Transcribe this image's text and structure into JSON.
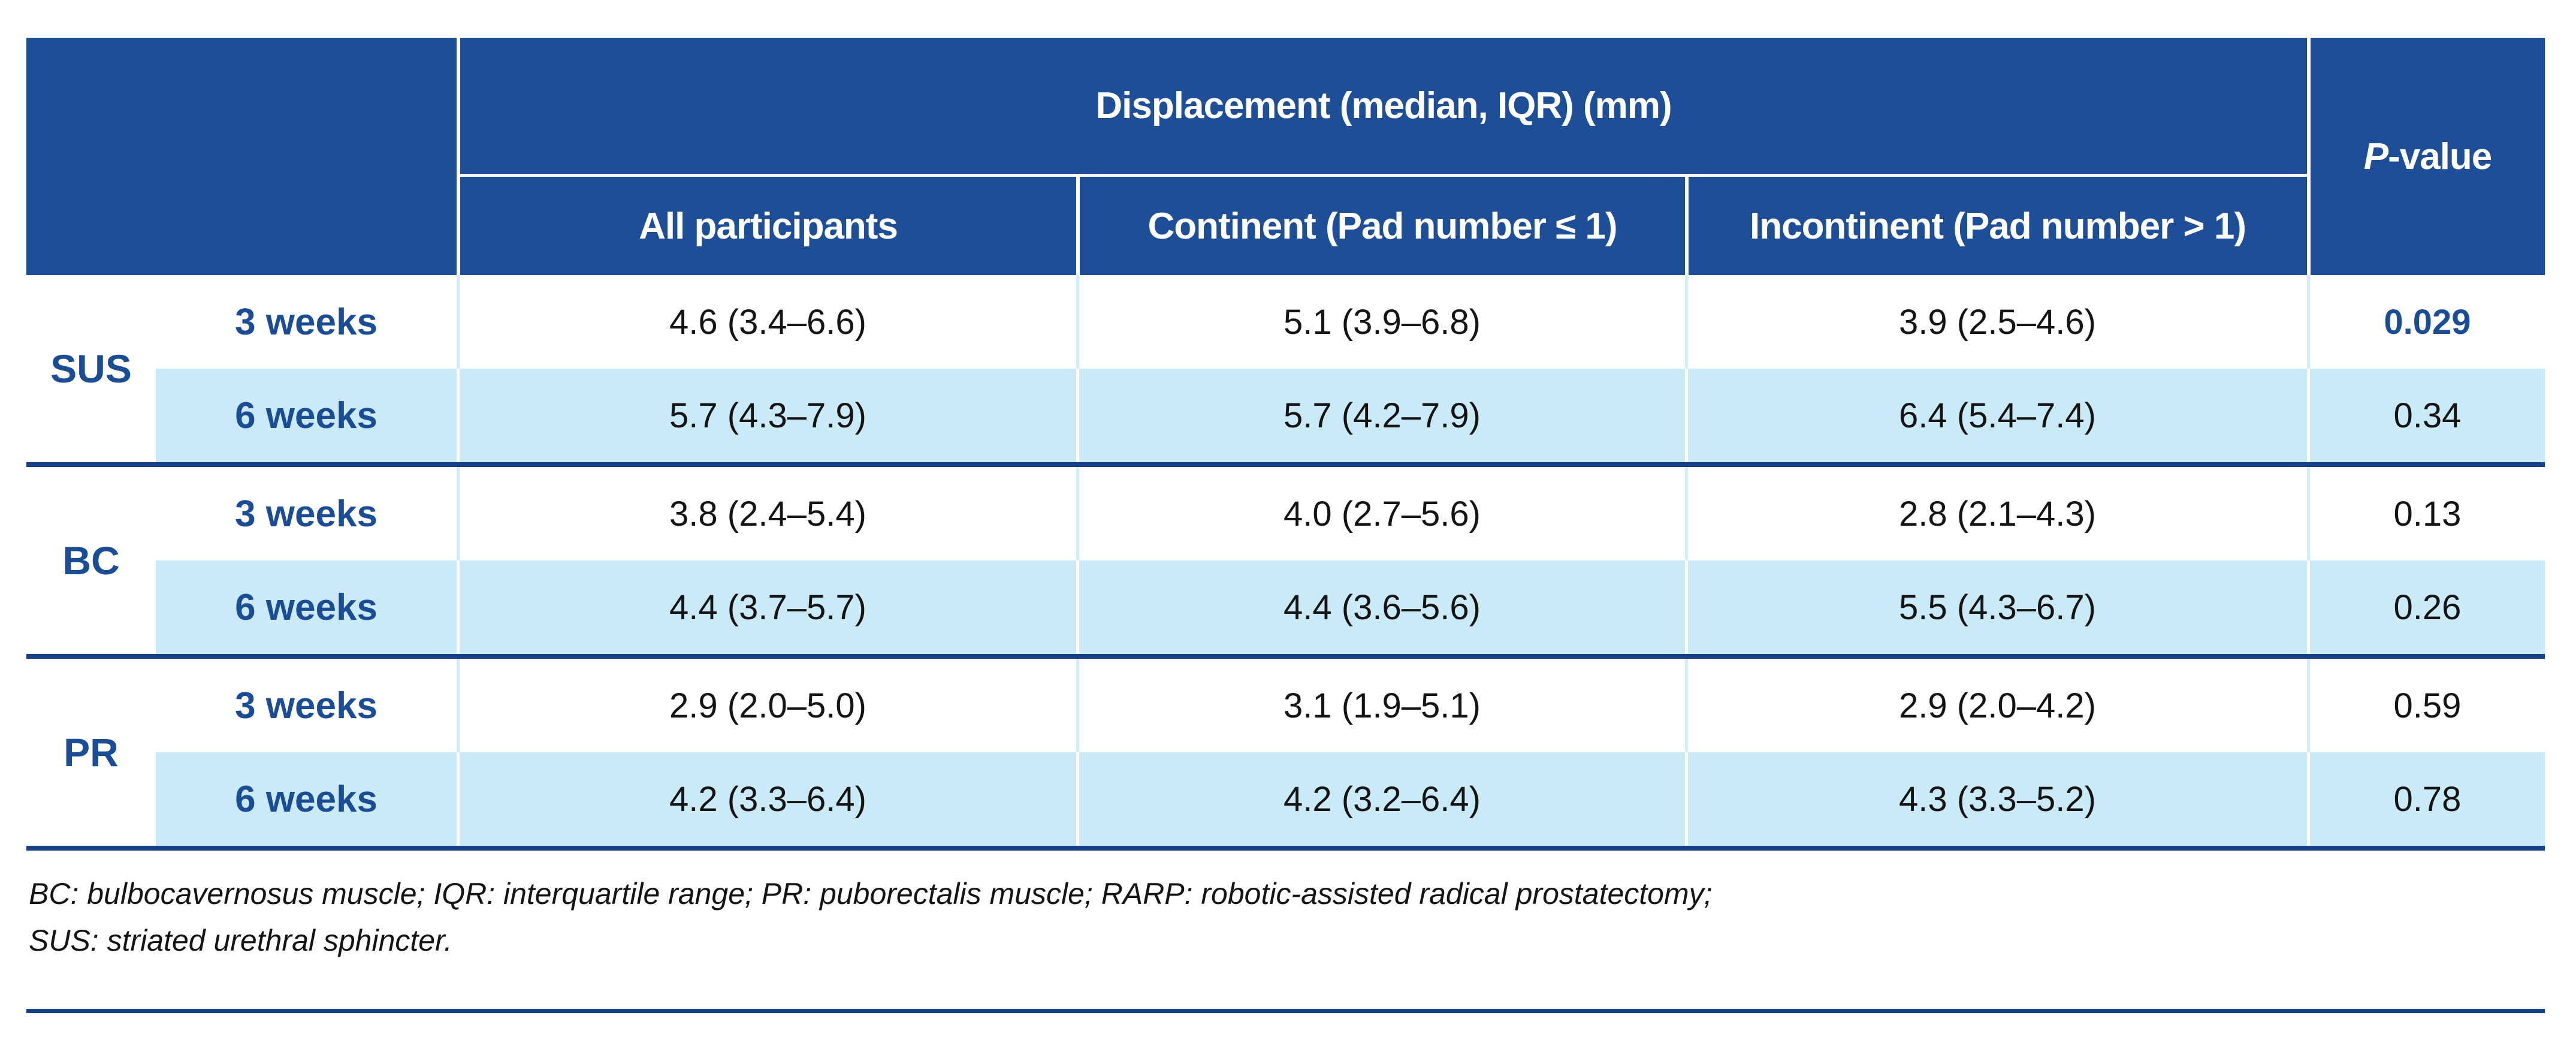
{
  "table": {
    "header": {
      "displacement_title": "Displacement (median, IQR) (mm)",
      "pvalue_italic": "P",
      "pvalue_rest": "-value",
      "sub_columns": [
        "All participants",
        "Continent (Pad number ≤ 1)",
        "Incontinent (Pad number > 1)"
      ]
    },
    "groups": [
      {
        "label": "SUS",
        "rows": [
          {
            "week": "3 weeks",
            "all": "4.6 (3.4–6.6)",
            "continent": "5.1 (3.9–6.8)",
            "incontinent": "3.9 (2.5–4.6)",
            "p": "0.029"
          },
          {
            "week": "6 weeks",
            "all": "5.7 (4.3–7.9)",
            "continent": "5.7 (4.2–7.9)",
            "incontinent": "6.4 (5.4–7.4)",
            "p": "0.34"
          }
        ]
      },
      {
        "label": "BC",
        "rows": [
          {
            "week": "3 weeks",
            "all": "3.8 (2.4–5.4)",
            "continent": "4.0 (2.7–5.6)",
            "incontinent": "2.8 (2.1–4.3)",
            "p": "0.13"
          },
          {
            "week": "6 weeks",
            "all": "4.4 (3.7–5.7)",
            "continent": "4.4 (3.6–5.6)",
            "incontinent": "5.5 (4.3–6.7)",
            "p": "0.26"
          }
        ]
      },
      {
        "label": "PR",
        "rows": [
          {
            "week": "3 weeks",
            "all": "2.9 (2.0–5.0)",
            "continent": "3.1 (1.9–5.1)",
            "incontinent": "2.9 (2.0–4.2)",
            "p": "0.59"
          },
          {
            "week": "6 weeks",
            "all": "4.2 (3.3–6.4)",
            "continent": "4.2 (3.2–6.4)",
            "incontinent": "4.3 (3.3–5.2)",
            "p": "0.78"
          }
        ]
      }
    ],
    "significant_p": "0.029",
    "footnote_line1": "BC: bulbocavernosus muscle; IQR: interquartile range; PR: puborectalis muscle; RARP: robotic-assisted radical prostatectomy;",
    "footnote_line2": "SUS: striated urethral sphincter.",
    "colors": {
      "header_blue": "#1F4E99",
      "row_light_blue": "#CBEAF7",
      "separator_navy": "#16418C",
      "accent_text_blue": "#1B4C96"
    }
  }
}
